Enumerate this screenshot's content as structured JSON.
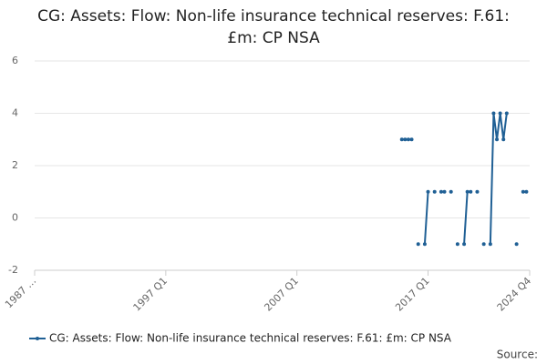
{
  "chart_data": {
    "type": "line",
    "title": "CG: Assets: Flow: Non-life insurance technical reserves: F.61: £m: CP NSA",
    "x": [
      2015,
      2015.25,
      2015.5,
      2015.75,
      2016,
      2016.25,
      2016.5,
      2016.75,
      2017,
      2017.25,
      2017.5,
      2017.75,
      2018,
      2018.25,
      2018.5,
      2018.75,
      2019,
      2019.25,
      2019.5,
      2019.75,
      2020,
      2020.25,
      2020.5,
      2020.75,
      2021,
      2021.25,
      2021.5,
      2021.75,
      2022,
      2022.25,
      2022.5,
      2022.75,
      2023,
      2023.25,
      2023.5,
      2023.75,
      2024,
      2024.25,
      2024.5
    ],
    "series": [
      {
        "name": "CG: Assets: Flow: Non-life insurance technical reserves: F.61: £m: CP NSA",
        "color": "#206095",
        "values": [
          3,
          3,
          3,
          3,
          null,
          -1,
          null,
          -1,
          1,
          null,
          1,
          null,
          1,
          1,
          null,
          1,
          null,
          -1,
          null,
          -1,
          1,
          1,
          null,
          1,
          null,
          -1,
          null,
          -1,
          4,
          3,
          4,
          3,
          4,
          null,
          null,
          -1,
          null,
          1,
          1
        ]
      }
    ],
    "xlim": [
      1987,
      2024.75
    ],
    "xticks": [
      {
        "value": 1987,
        "label": "1987 …"
      },
      {
        "value": 1997,
        "label": "1997 Q1"
      },
      {
        "value": 2007,
        "label": "2007 Q1"
      },
      {
        "value": 2017,
        "label": "2017 Q1"
      },
      {
        "value": 2024.75,
        "label": "2024 Q4"
      }
    ],
    "ylim": [
      -2,
      6
    ],
    "yticks": [
      -2,
      0,
      2,
      4,
      6
    ],
    "grid": true,
    "source": "Source:"
  }
}
